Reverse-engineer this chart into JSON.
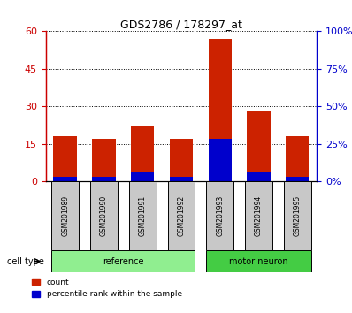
{
  "title": "GDS2786 / 178297_at",
  "categories": [
    "GSM201989",
    "GSM201990",
    "GSM201991",
    "GSM201992",
    "GSM201993",
    "GSM201994",
    "GSM201995"
  ],
  "red_values": [
    18,
    17,
    22,
    17,
    57,
    28,
    18
  ],
  "blue_values": [
    2,
    2,
    4,
    2,
    17,
    4,
    2
  ],
  "groups": [
    {
      "label": "reference",
      "indices": [
        0,
        1,
        2,
        3
      ],
      "color": "#90ee90"
    },
    {
      "label": "motor neuron",
      "indices": [
        4,
        5,
        6
      ],
      "color": "#44cc44"
    }
  ],
  "group_label": "cell type",
  "left_axis_color": "#cc0000",
  "right_axis_color": "#0000cc",
  "left_yticks": [
    0,
    15,
    30,
    45,
    60
  ],
  "right_yticks": [
    0,
    25,
    50,
    75,
    100
  ],
  "right_ytick_labels": [
    "0%",
    "25%",
    "50%",
    "75%",
    "100%"
  ],
  "ylim": [
    0,
    60
  ],
  "right_ylim": [
    0,
    100
  ],
  "bar_color_red": "#cc2200",
  "bar_color_blue": "#0000cc",
  "bar_width": 0.6,
  "bg_color": "#ffffff",
  "tick_label_bg": "#c8c8c8",
  "legend_count_label": "count",
  "legend_percentile_label": "percentile rank within the sample"
}
